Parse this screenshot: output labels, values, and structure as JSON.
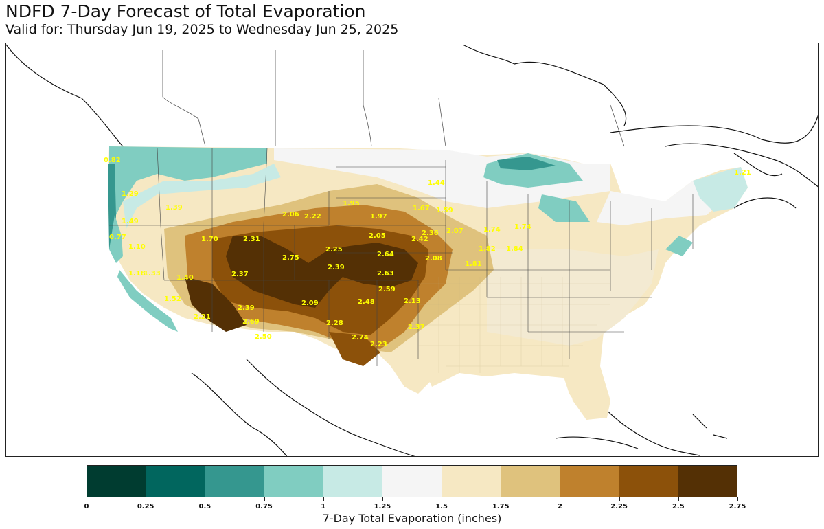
{
  "header": {
    "title": "NDFD 7-Day Forecast of Total Evaporation",
    "subtitle": "Valid for: Thursday Jun 19, 2025 to Wednesday Jun 25, 2025"
  },
  "colorbar": {
    "label": "7-Day Total Evaporation (inches)",
    "ticks": [
      "0",
      "0.25",
      "0.5",
      "0.75",
      "1",
      "1.25",
      "1.5",
      "1.75",
      "2",
      "2.25",
      "2.5",
      "2.75"
    ],
    "colors": [
      "#003c30",
      "#01665e",
      "#35978f",
      "#80cdc1",
      "#c7eae5",
      "#f5f5f5",
      "#f6e8c3",
      "#dfc27d",
      "#bf812d",
      "#8c510a",
      "#543005"
    ]
  },
  "map_labels": [
    {
      "text": "2.64"
    },
    {
      "text": "2.63"
    },
    {
      "text": "2.59"
    },
    {
      "text": "2.48"
    },
    {
      "text": "2.74"
    },
    {
      "text": "2.23"
    },
    {
      "text": "2.39"
    },
    {
      "text": "2.75"
    },
    {
      "text": "2.31"
    },
    {
      "text": "2.37"
    },
    {
      "text": "2.39"
    },
    {
      "text": "2.69"
    },
    {
      "text": "2.50"
    },
    {
      "text": "2.21"
    },
    {
      "text": "2.28"
    },
    {
      "text": "2.25"
    },
    {
      "text": "2.05"
    },
    {
      "text": "2.42"
    },
    {
      "text": "2.36"
    },
    {
      "text": "2.08"
    },
    {
      "text": "2.07"
    },
    {
      "text": "2.13"
    },
    {
      "text": "2.37"
    },
    {
      "text": "2.06"
    },
    {
      "text": "2.22"
    },
    {
      "text": "1.95"
    },
    {
      "text": "1.97"
    },
    {
      "text": "2.09"
    },
    {
      "text": "0.82"
    },
    {
      "text": "0.77"
    },
    {
      "text": "1.10"
    },
    {
      "text": "1.49"
    },
    {
      "text": "1.29"
    },
    {
      "text": "1.39"
    },
    {
      "text": "1.70"
    },
    {
      "text": "1.74"
    },
    {
      "text": "1.40"
    },
    {
      "text": "1.33"
    },
    {
      "text": "1.18"
    },
    {
      "text": "1.52"
    },
    {
      "text": "1.82"
    },
    {
      "text": "1.81"
    },
    {
      "text": "1.84"
    },
    {
      "text": "1.67"
    },
    {
      "text": "1.59"
    },
    {
      "text": "1.74"
    },
    {
      "text": "1.44"
    },
    {
      "text": "1.21"
    }
  ]
}
